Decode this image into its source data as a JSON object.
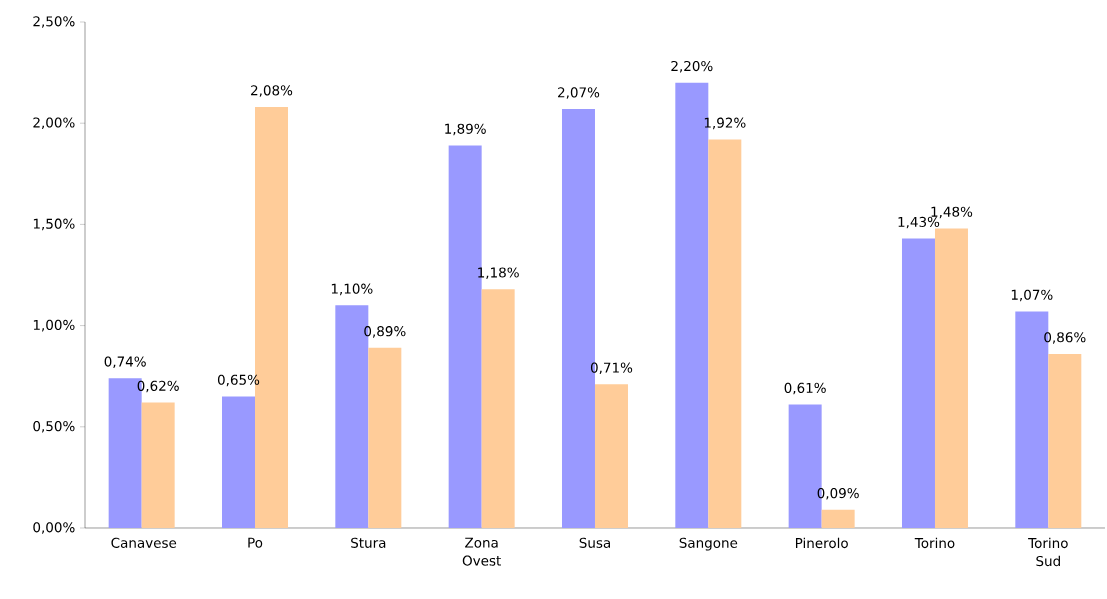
{
  "chart_data": {
    "type": "bar",
    "categories": [
      "Canavese",
      "Po",
      "Stura",
      "Zona Ovest",
      "Susa",
      "Sangone",
      "Pinerolo",
      "Torino",
      "Torino Sud"
    ],
    "series": [
      {
        "color": "#9999ff",
        "values": [
          0.74,
          0.65,
          1.1,
          1.89,
          2.07,
          2.2,
          0.61,
          1.43,
          1.07
        ],
        "value_labels": [
          "0,74%",
          "0,65%",
          "1,10%",
          "1,89%",
          "2,07%",
          "2,20%",
          "0,61%",
          "1,43%",
          "1,07%"
        ]
      },
      {
        "color": "#ffcc99",
        "values": [
          0.62,
          2.08,
          0.89,
          1.18,
          0.71,
          1.92,
          0.09,
          1.48,
          0.86
        ],
        "value_labels": [
          "0,62%",
          "2,08%",
          "0,89%",
          "1,18%",
          "0,71%",
          "1,92%",
          "0,09%",
          "1,48%",
          "0,86%"
        ]
      }
    ],
    "ylim": [
      0,
      2.5
    ],
    "yticks": [
      {
        "value": 0,
        "label": "0,00%"
      },
      {
        "value": 0.5,
        "label": "0,50%"
      },
      {
        "value": 1,
        "label": "1,00%"
      },
      {
        "value": 1.5,
        "label": "1,50%"
      },
      {
        "value": 2,
        "label": "2,00%"
      },
      {
        "value": 2.5,
        "label": "2,50%"
      }
    ],
    "grid": false
  }
}
